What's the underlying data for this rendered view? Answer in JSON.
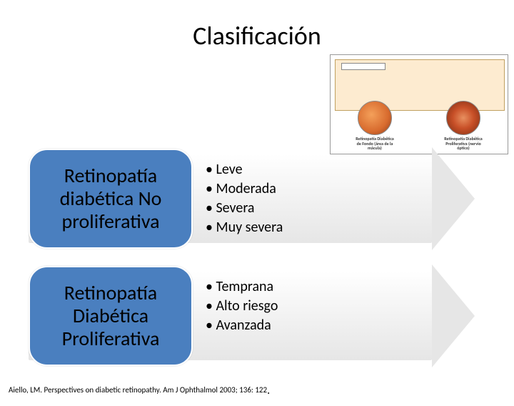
{
  "title": "Clasificación",
  "diagram": {
    "fundus_left_label": "Retinopatía\nDiabética de Fondo\n(área de la mácula)",
    "fundus_right_label": "Retinopatía\nDiabética Proliferativa\n(nervio óptico)"
  },
  "rows": [
    {
      "heading": "Retinopatía diabética No proliferativa",
      "bullets": [
        "Leve",
        "Moderada",
        "Severa",
        "Muy severa"
      ]
    },
    {
      "heading": "Retinopatía Diabética Proliferativa",
      "bullets": [
        "Temprana",
        "Alto riesgo",
        "Avanzada"
      ]
    }
  ],
  "citation": "Aiello, LM. Perspectives on diabetic retinopathy. Am J Ophthalmol 2003; 136: 122",
  "colors": {
    "pill_bg": "#4a7fbf",
    "arrow_grad_start": "#ffffff",
    "arrow_grad_end": "#e6e6e6",
    "text": "#000000"
  }
}
